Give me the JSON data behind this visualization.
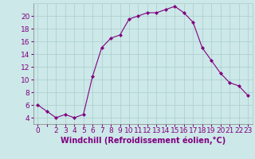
{
  "x": [
    0,
    1,
    2,
    3,
    4,
    5,
    6,
    7,
    8,
    9,
    10,
    11,
    12,
    13,
    14,
    15,
    16,
    17,
    18,
    19,
    20,
    21,
    22,
    23
  ],
  "y": [
    6,
    5,
    4,
    4.5,
    4,
    4.5,
    10.5,
    15,
    16.5,
    17,
    19.5,
    20,
    20.5,
    20.5,
    21,
    21.5,
    20.5,
    19,
    15,
    13,
    11,
    9.5,
    9,
    7.5
  ],
  "line_color": "#800080",
  "marker": "D",
  "marker_size": 2,
  "bg_color": "#cce8e8",
  "grid_color": "#aacece",
  "xlabel": "Windchill (Refroidissement éolien,°C)",
  "xlabel_color": "#800080",
  "xlabel_fontsize": 7,
  "tick_color": "#800080",
  "tick_fontsize": 6.5,
  "ylim": [
    3,
    22
  ],
  "xlim": [
    -0.5,
    23.5
  ],
  "yticks": [
    4,
    6,
    8,
    10,
    12,
    14,
    16,
    18,
    20
  ],
  "ytick_labels": [
    "4",
    "6",
    "8",
    "10",
    "12",
    "14",
    "16",
    "18",
    "20"
  ],
  "xticks": [
    0,
    1,
    2,
    3,
    4,
    5,
    6,
    7,
    8,
    9,
    10,
    11,
    12,
    13,
    14,
    15,
    16,
    17,
    18,
    19,
    20,
    21,
    22,
    23
  ],
  "xtick_labels": [
    "0",
    "",
    "2",
    "3",
    "4",
    "5",
    "6",
    "7",
    "8",
    "9",
    "10",
    "11",
    "12",
    "13",
    "14",
    "15",
    "16",
    "17",
    "18",
    "19",
    "20",
    "21",
    "22",
    "23"
  ]
}
